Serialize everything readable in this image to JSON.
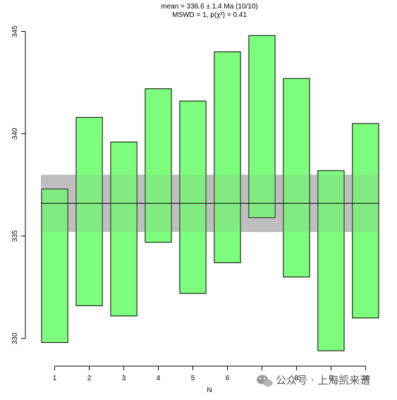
{
  "chart_data": {
    "type": "bar",
    "title": "mean = 336.6 ± 1.4 Ma (10/10)",
    "subtitle": "MSWD = 1, p(χ²) = 0.41",
    "xlabel": "N",
    "ylabel": "",
    "x": [
      1,
      2,
      3,
      4,
      5,
      6,
      7,
      8,
      9,
      10
    ],
    "x_tick_labels": [
      "1",
      "2",
      "3",
      "4",
      "5",
      "6",
      "7",
      "8",
      "9",
      "10"
    ],
    "y_tick_labels": [
      "330",
      "335",
      "340",
      "345"
    ],
    "ylim": [
      329.2,
      345.5
    ],
    "xlim": [
      0.6,
      10.4
    ],
    "intervals": [
      {
        "n": 1,
        "low": 329.8,
        "high": 337.3
      },
      {
        "n": 2,
        "low": 331.6,
        "high": 340.8
      },
      {
        "n": 3,
        "low": 331.1,
        "high": 339.6
      },
      {
        "n": 4,
        "low": 334.7,
        "high": 342.2
      },
      {
        "n": 5,
        "low": 332.2,
        "high": 341.6
      },
      {
        "n": 6,
        "low": 333.7,
        "high": 344.0
      },
      {
        "n": 7,
        "low": 335.9,
        "high": 344.8
      },
      {
        "n": 8,
        "low": 333.0,
        "high": 342.7
      },
      {
        "n": 9,
        "low": 329.4,
        "high": 338.2
      },
      {
        "n": 10,
        "low": 331.0,
        "high": 340.5
      }
    ],
    "mean": 336.6,
    "mean_band": [
      335.2,
      338.0
    ],
    "colors": {
      "bar_fill": "#66ff66",
      "bar_stroke": "#000000",
      "band_fill": "#bfbfbf",
      "mean_line": "#000000"
    },
    "grid": false
  },
  "watermark": {
    "text": "公众号 · 上海凯来谱"
  }
}
